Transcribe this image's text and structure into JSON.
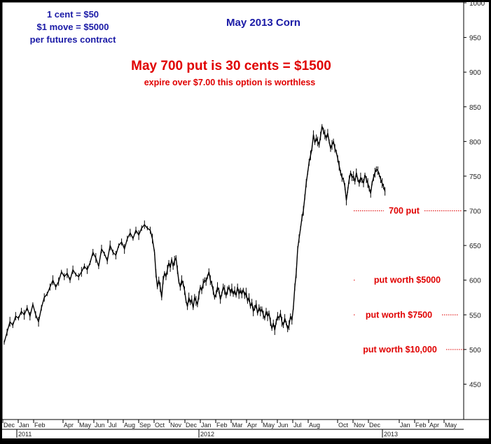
{
  "chart_data": {
    "type": "line",
    "title": "May 2013 Corn",
    "ylim": [
      400,
      1000
    ],
    "y_ticks": [
      450,
      500,
      550,
      600,
      650,
      700,
      750,
      800,
      850,
      900,
      950,
      1000
    ],
    "month_labels": [
      "Dec",
      "Jan",
      "Feb",
      "Apr",
      "May",
      "Jun",
      "Jul",
      "Aug",
      "Sep",
      "Oct",
      "Nov",
      "Dec",
      "Jan",
      "Feb",
      "Mar",
      "Apr",
      "May",
      "Jun",
      "Jul",
      "Aug",
      "Oct",
      "Nov",
      "Dec",
      "Jan",
      "Feb",
      "Apr",
      "May"
    ],
    "year_labels": [
      "2011",
      "2012",
      "2013"
    ],
    "note_left": [
      "1 cent = $50",
      "$1 move = $5000",
      "per futures contract"
    ],
    "headline": "May 700 put is 30 cents = $1500",
    "subheadline": "expire over $7.00 this option is worthless",
    "levels": [
      {
        "label": "700 put",
        "value": 700
      },
      {
        "label": "put worth $5000",
        "value": 600
      },
      {
        "label": "put worth $7500",
        "value": 550
      },
      {
        "label": "put worth $10,000",
        "value": 500
      }
    ],
    "series": [
      {
        "values": [
          [
            0,
            510
          ],
          [
            4,
            525
          ],
          [
            8,
            540
          ],
          [
            12,
            535
          ],
          [
            16,
            548
          ],
          [
            20,
            545
          ],
          [
            24,
            555
          ],
          [
            28,
            550
          ],
          [
            32,
            560
          ],
          [
            36,
            548
          ],
          [
            40,
            565
          ],
          [
            44,
            550
          ],
          [
            48,
            540
          ],
          [
            52,
            560
          ],
          [
            56,
            575
          ],
          [
            60,
            580
          ],
          [
            64,
            590
          ],
          [
            68,
            600
          ],
          [
            72,
            590
          ],
          [
            76,
            598
          ],
          [
            80,
            612
          ],
          [
            84,
            605
          ],
          [
            88,
            610
          ],
          [
            92,
            600
          ],
          [
            96,
            615
          ],
          [
            100,
            608
          ],
          [
            104,
            605
          ],
          [
            108,
            612
          ],
          [
            112,
            620
          ],
          [
            116,
            615
          ],
          [
            120,
            625
          ],
          [
            124,
            640
          ],
          [
            128,
            632
          ],
          [
            132,
            620
          ],
          [
            136,
            645
          ],
          [
            140,
            638
          ],
          [
            144,
            628
          ],
          [
            148,
            650
          ],
          [
            152,
            640
          ],
          [
            156,
            636
          ],
          [
            160,
            650
          ],
          [
            164,
            655
          ],
          [
            168,
            645
          ],
          [
            172,
            660
          ],
          [
            176,
            668
          ],
          [
            180,
            660
          ],
          [
            184,
            672
          ],
          [
            188,
            665
          ],
          [
            192,
            675
          ],
          [
            196,
            680
          ],
          [
            200,
            675
          ],
          [
            204,
            672
          ],
          [
            207,
            660
          ],
          [
            210,
            640
          ],
          [
            212,
            610
          ],
          [
            214,
            590
          ],
          [
            216,
            600
          ],
          [
            218,
            590
          ],
          [
            220,
            575
          ],
          [
            222,
            600
          ],
          [
            224,
            610
          ],
          [
            226,
            605
          ],
          [
            228,
            615
          ],
          [
            230,
            625
          ],
          [
            232,
            618
          ],
          [
            234,
            630
          ],
          [
            236,
            620
          ],
          [
            238,
            628
          ],
          [
            240,
            632
          ],
          [
            242,
            615
          ],
          [
            244,
            598
          ],
          [
            246,
            590
          ],
          [
            248,
            600
          ],
          [
            250,
            595
          ],
          [
            252,
            585
          ],
          [
            254,
            570
          ],
          [
            256,
            562
          ],
          [
            258,
            575
          ],
          [
            260,
            568
          ],
          [
            262,
            572
          ],
          [
            264,
            560
          ],
          [
            266,
            575
          ],
          [
            268,
            570
          ],
          [
            270,
            565
          ],
          [
            272,
            578
          ],
          [
            274,
            590
          ],
          [
            276,
            585
          ],
          [
            278,
            595
          ],
          [
            280,
            600
          ],
          [
            282,
            598
          ],
          [
            284,
            605
          ],
          [
            286,
            612
          ],
          [
            288,
            600
          ],
          [
            290,
            595
          ],
          [
            292,
            585
          ],
          [
            294,
            575
          ],
          [
            296,
            580
          ],
          [
            298,
            590
          ],
          [
            300,
            585
          ],
          [
            302,
            572
          ],
          [
            304,
            580
          ],
          [
            306,
            590
          ],
          [
            308,
            586
          ],
          [
            310,
            578
          ],
          [
            312,
            585
          ],
          [
            314,
            590
          ],
          [
            316,
            582
          ],
          [
            318,
            588
          ],
          [
            320,
            580
          ],
          [
            322,
            585
          ],
          [
            324,
            578
          ],
          [
            326,
            590
          ],
          [
            328,
            580
          ],
          [
            330,
            585
          ],
          [
            332,
            580
          ],
          [
            334,
            586
          ],
          [
            336,
            578
          ],
          [
            338,
            582
          ],
          [
            340,
            570
          ],
          [
            342,
            575
          ],
          [
            344,
            562
          ],
          [
            346,
            568
          ],
          [
            348,
            555
          ],
          [
            350,
            560
          ],
          [
            352,
            565
          ],
          [
            354,
            552
          ],
          [
            356,
            560
          ],
          [
            358,
            555
          ],
          [
            360,
            558
          ],
          [
            362,
            550
          ],
          [
            364,
            545
          ],
          [
            366,
            555
          ],
          [
            368,
            548
          ],
          [
            370,
            552
          ],
          [
            372,
            540
          ],
          [
            374,
            530
          ],
          [
            376,
            538
          ],
          [
            378,
            528
          ],
          [
            380,
            540
          ],
          [
            382,
            548
          ],
          [
            384,
            545
          ],
          [
            386,
            552
          ],
          [
            388,
            540
          ],
          [
            390,
            535
          ],
          [
            392,
            545
          ],
          [
            394,
            538
          ],
          [
            396,
            530
          ],
          [
            398,
            535
          ],
          [
            400,
            548
          ],
          [
            402,
            542
          ],
          [
            404,
            560
          ],
          [
            406,
            590
          ],
          [
            408,
            610
          ],
          [
            410,
            645
          ],
          [
            412,
            660
          ],
          [
            414,
            675
          ],
          [
            416,
            690
          ],
          [
            418,
            700
          ],
          [
            420,
            720
          ],
          [
            422,
            740
          ],
          [
            424,
            755
          ],
          [
            426,
            770
          ],
          [
            428,
            780
          ],
          [
            430,
            790
          ],
          [
            432,
            810
          ],
          [
            434,
            798
          ],
          [
            436,
            805
          ],
          [
            438,
            800
          ],
          [
            440,
            795
          ],
          [
            442,
            808
          ],
          [
            444,
            822
          ],
          [
            446,
            815
          ],
          [
            448,
            810
          ],
          [
            450,
            805
          ],
          [
            452,
            812
          ],
          [
            454,
            800
          ],
          [
            456,
            790
          ],
          [
            458,
            795
          ],
          [
            460,
            800
          ],
          [
            462,
            790
          ],
          [
            464,
            785
          ],
          [
            466,
            775
          ],
          [
            468,
            765
          ],
          [
            470,
            755
          ],
          [
            472,
            748
          ],
          [
            474,
            745
          ],
          [
            476,
            735
          ],
          [
            478,
            715
          ],
          [
            480,
            730
          ],
          [
            482,
            745
          ],
          [
            484,
            755
          ],
          [
            486,
            748
          ],
          [
            488,
            750
          ],
          [
            490,
            742
          ],
          [
            492,
            755
          ],
          [
            494,
            745
          ],
          [
            496,
            740
          ],
          [
            498,
            748
          ],
          [
            500,
            744
          ],
          [
            502,
            740
          ],
          [
            504,
            752
          ],
          [
            506,
            745
          ],
          [
            508,
            740
          ],
          [
            510,
            732
          ],
          [
            512,
            725
          ],
          [
            514,
            740
          ],
          [
            516,
            748
          ],
          [
            518,
            755
          ],
          [
            520,
            760
          ],
          [
            522,
            758
          ],
          [
            524,
            752
          ],
          [
            526,
            745
          ],
          [
            528,
            740
          ],
          [
            530,
            735
          ],
          [
            532,
            728
          ]
        ]
      }
    ],
    "x_span": [
      0,
      640
    ],
    "grid": false
  }
}
